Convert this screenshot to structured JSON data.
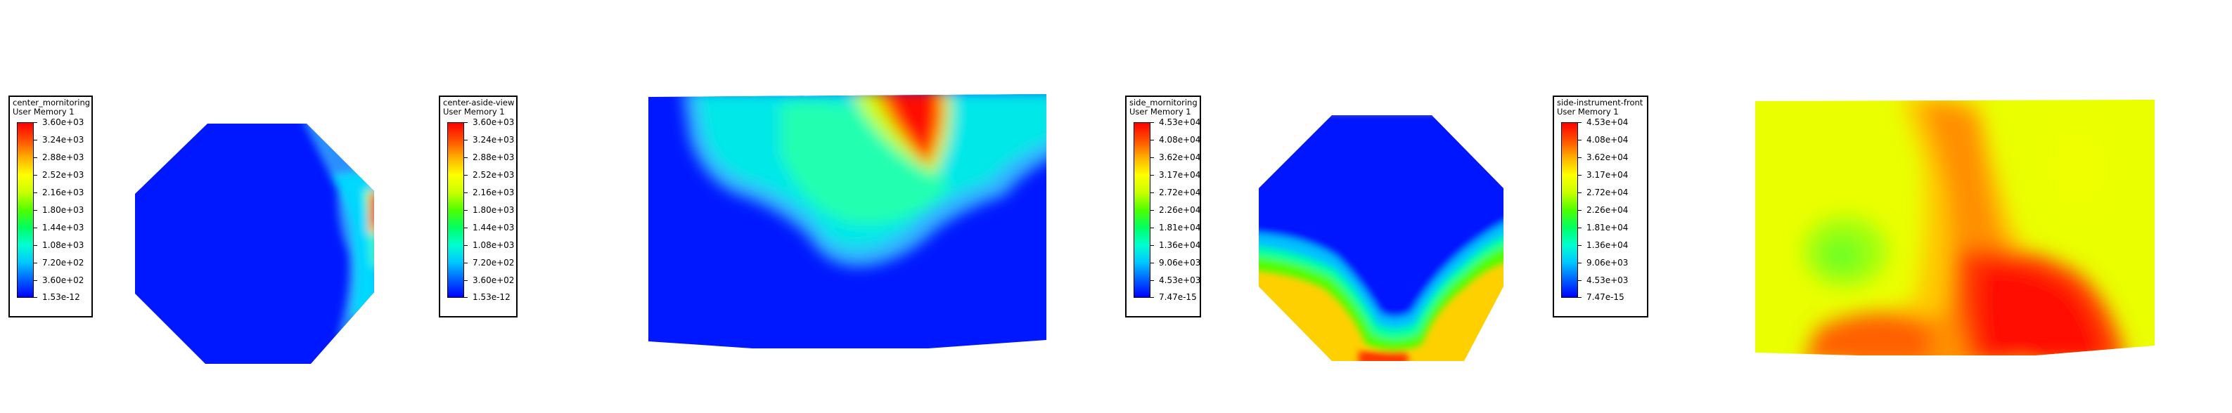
{
  "legends": [
    {
      "title": "center_mornitoring",
      "subtitle": "User Memory 1",
      "ticks": [
        "3.60e+03",
        "3.24e+03",
        "2.88e+03",
        "2.52e+03",
        "2.16e+03",
        "1.80e+03",
        "1.44e+03",
        "1.08e+03",
        "7.20e+02",
        "3.60e+02",
        "1.53e-12"
      ]
    },
    {
      "title": "center-aside-view",
      "subtitle": "User Memory 1",
      "ticks": [
        "3.60e+03",
        "3.24e+03",
        "2.88e+03",
        "2.52e+03",
        "2.16e+03",
        "1.80e+03",
        "1.44e+03",
        "1.08e+03",
        "7.20e+02",
        "3.60e+02",
        "1.53e-12"
      ]
    },
    {
      "title": "side_mornitoring",
      "subtitle": "User Memory 1",
      "ticks": [
        "4.53e+04",
        "4.08e+04",
        "3.62e+04",
        "3.17e+04",
        "2.72e+04",
        "2.26e+04",
        "1.81e+04",
        "1.36e+04",
        "9.06e+03",
        "4.53e+03",
        "7.47e-15"
      ]
    },
    {
      "title": "side-instrument-front",
      "subtitle": "User Memory 1",
      "ticks": [
        "4.53e+04",
        "4.08e+04",
        "3.62e+04",
        "3.17e+04",
        "2.72e+04",
        "2.26e+04",
        "1.81e+04",
        "1.36e+04",
        "9.06e+03",
        "4.53e+03",
        "7.47e-15"
      ]
    }
  ],
  "colors": {
    "scale": [
      "#0000ff",
      "#0060ff",
      "#00c8ff",
      "#00ffd0",
      "#00ff60",
      "#50ff00",
      "#c8ff00",
      "#ffff00",
      "#ffb000",
      "#ff5000",
      "#ff0000"
    ]
  }
}
